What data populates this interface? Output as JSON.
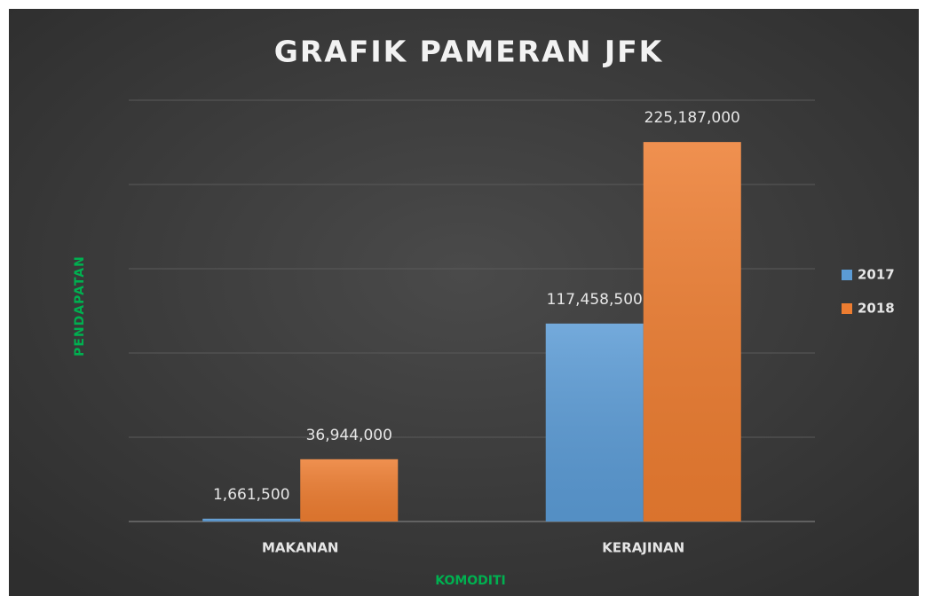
{
  "chart_data": {
    "type": "bar",
    "title": "GRAFIK PAMERAN JFK",
    "x_label": "KOMODITI",
    "y_label": "PENDAPATAN",
    "categories": [
      "MAKANAN",
      "KERAJINAN"
    ],
    "series": [
      {
        "name": "2017",
        "color": "#5b9bd5",
        "values": [
          1661500,
          117458500
        ],
        "value_labels": [
          "1,661,500",
          "117,458,500"
        ]
      },
      {
        "name": "2018",
        "color": "#ed7d31",
        "values": [
          36944000,
          225187000
        ],
        "value_labels": [
          "36,944,000",
          "225,187,000"
        ]
      }
    ],
    "ylim": [
      0,
      250000000
    ],
    "yticks": [
      0,
      50000000,
      100000000,
      150000000,
      200000000,
      250000000
    ],
    "grid": true,
    "legend": "right"
  }
}
